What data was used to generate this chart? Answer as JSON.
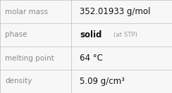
{
  "rows": [
    {
      "label": "molar mass",
      "value": "352.01933 g/mol",
      "value_extra": null,
      "superscript": false
    },
    {
      "label": "phase",
      "value": "solid",
      "value_extra": "(at STP)",
      "superscript": false
    },
    {
      "label": "melting point",
      "value": "64 °C",
      "value_extra": null,
      "superscript": false
    },
    {
      "label": "density",
      "value": "5.09 g/cm³",
      "value_extra": null,
      "superscript": false
    }
  ],
  "background_color": "#f7f7f7",
  "border_color": "#cccccc",
  "label_color": "#888888",
  "value_color": "#111111",
  "extra_color": "#999999",
  "label_fontsize": 7.5,
  "value_fontsize": 8.5,
  "extra_fontsize": 6.2,
  "col_split": 0.415
}
